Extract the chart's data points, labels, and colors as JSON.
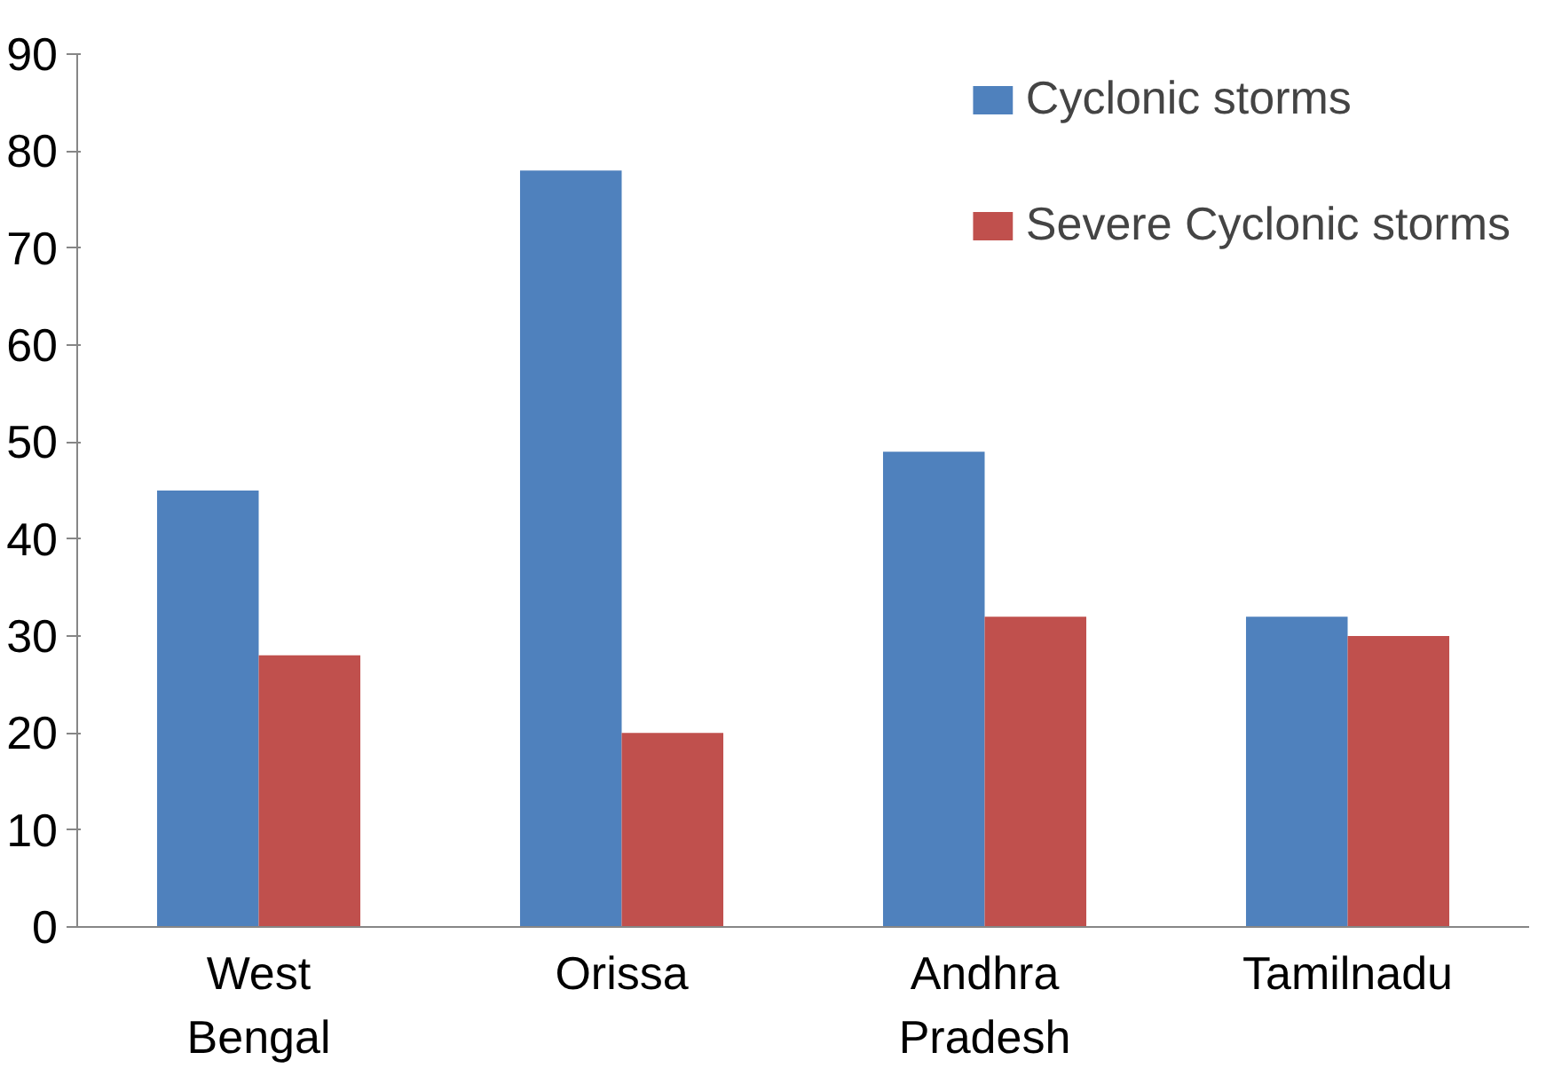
{
  "chart_data": {
    "type": "bar",
    "categories": [
      "West Bengal",
      "Orissa",
      "Andhra Pradesh",
      "Tamilnadu"
    ],
    "series": [
      {
        "name": "Cyclonic storms",
        "color": "#4f81bd",
        "values": [
          45,
          78,
          49,
          32
        ]
      },
      {
        "name": "Severe Cyclonic storms",
        "color": "#c0504d",
        "values": [
          28,
          20,
          32,
          30
        ]
      }
    ],
    "ylim": [
      0,
      90
    ],
    "yticks": [
      0,
      10,
      20,
      30,
      40,
      50,
      60,
      70,
      80,
      90
    ],
    "grid": false,
    "legend": "top right"
  }
}
